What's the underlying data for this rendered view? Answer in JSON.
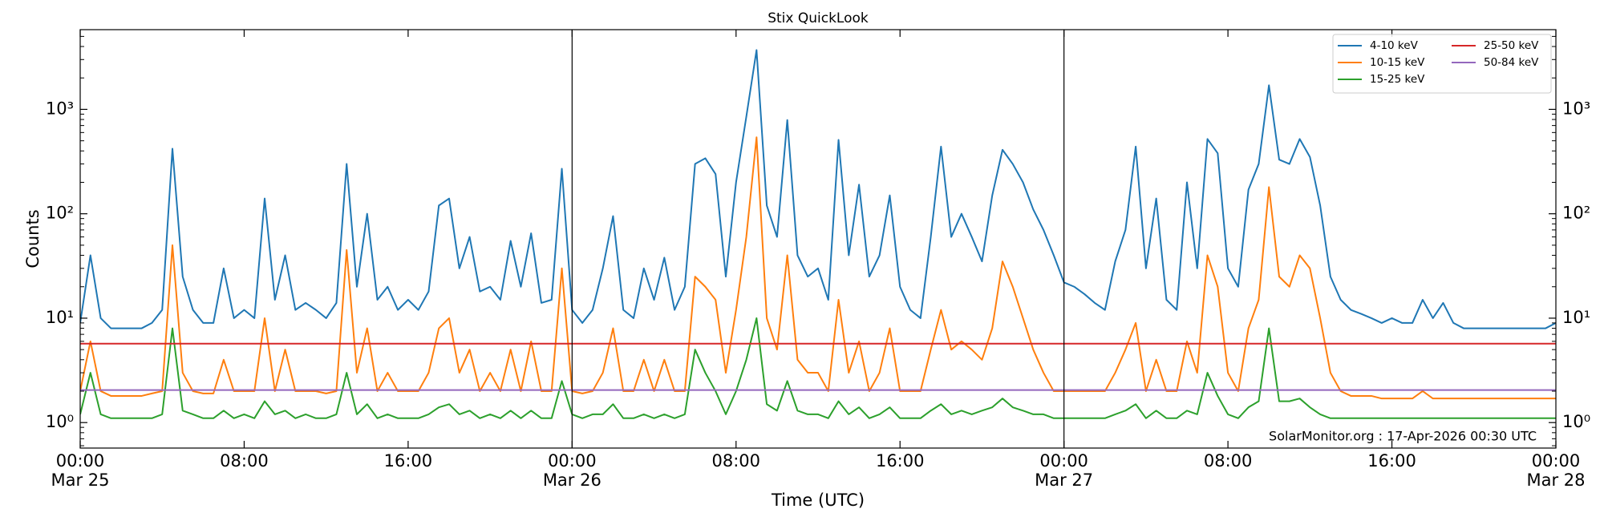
{
  "chart_data": {
    "type": "line",
    "title": "Stix QuickLook",
    "x_label": "Time (UTC)",
    "y_label": "Counts",
    "annotation": "SolarMonitor.org : 17-Apr-2026 00:30 UTC",
    "log_y": true,
    "legend": "upper right",
    "legend_columns": 2,
    "day_separators": true,
    "xlim": [
      "Mar 25 00:00",
      "Mar 28 00:00"
    ],
    "xticks": [
      {
        "value": "Mar 25 00:00",
        "label": [
          "00:00",
          "Mar 25"
        ]
      },
      {
        "value": "Mar 25 08:00",
        "label": [
          "08:00"
        ]
      },
      {
        "value": "Mar 25 16:00",
        "label": [
          "16:00"
        ]
      },
      {
        "value": "Mar 26 00:00",
        "label": [
          "00:00",
          "Mar 26"
        ]
      },
      {
        "value": "Mar 26 08:00",
        "label": [
          "08:00"
        ]
      },
      {
        "value": "Mar 26 16:00",
        "label": [
          "16:00"
        ]
      },
      {
        "value": "Mar 27 00:00",
        "label": [
          "00:00",
          "Mar 27"
        ]
      },
      {
        "value": "Mar 27 08:00",
        "label": [
          "08:00"
        ]
      },
      {
        "value": "Mar 27 16:00",
        "label": [
          "16:00"
        ]
      },
      {
        "value": "Mar 28 00:00",
        "label": [
          "00:00",
          "Mar 28"
        ]
      }
    ],
    "ylim": [
      0.57,
      5800
    ],
    "yticks": [
      {
        "value": 1,
        "label": "10⁰"
      },
      {
        "value": 10,
        "label": "10¹"
      },
      {
        "value": 100,
        "label": "10²"
      },
      {
        "value": 1000,
        "label": "10³"
      }
    ],
    "x": [
      "Mar 25 00:00",
      "Mar 25 00:30",
      "Mar 25 01:00",
      "Mar 25 01:30",
      "Mar 25 02:00",
      "Mar 25 02:30",
      "Mar 25 03:00",
      "Mar 25 03:30",
      "Mar 25 04:00",
      "Mar 25 04:30",
      "Mar 25 05:00",
      "Mar 25 05:30",
      "Mar 25 06:00",
      "Mar 25 06:30",
      "Mar 25 07:00",
      "Mar 25 07:30",
      "Mar 25 08:00",
      "Mar 25 08:30",
      "Mar 25 09:00",
      "Mar 25 09:30",
      "Mar 25 10:00",
      "Mar 25 10:30",
      "Mar 25 11:00",
      "Mar 25 11:30",
      "Mar 25 12:00",
      "Mar 25 12:30",
      "Mar 25 13:00",
      "Mar 25 13:30",
      "Mar 25 14:00",
      "Mar 25 14:30",
      "Mar 25 15:00",
      "Mar 25 15:30",
      "Mar 25 16:00",
      "Mar 25 16:30",
      "Mar 25 17:00",
      "Mar 25 17:30",
      "Mar 25 18:00",
      "Mar 25 18:30",
      "Mar 25 19:00",
      "Mar 25 19:30",
      "Mar 25 20:00",
      "Mar 25 20:30",
      "Mar 25 21:00",
      "Mar 25 21:30",
      "Mar 25 22:00",
      "Mar 25 22:30",
      "Mar 25 23:00",
      "Mar 25 23:30",
      "Mar 26 00:00",
      "Mar 26 00:30",
      "Mar 26 01:00",
      "Mar 26 01:30",
      "Mar 26 02:00",
      "Mar 26 02:30",
      "Mar 26 03:00",
      "Mar 26 03:30",
      "Mar 26 04:00",
      "Mar 26 04:30",
      "Mar 26 05:00",
      "Mar 26 05:30",
      "Mar 26 06:00",
      "Mar 26 06:30",
      "Mar 26 07:00",
      "Mar 26 07:30",
      "Mar 26 08:00",
      "Mar 26 08:30",
      "Mar 26 09:00",
      "Mar 26 09:30",
      "Mar 26 10:00",
      "Mar 26 10:30",
      "Mar 26 11:00",
      "Mar 26 11:30",
      "Mar 26 12:00",
      "Mar 26 12:30",
      "Mar 26 13:00",
      "Mar 26 13:30",
      "Mar 26 14:00",
      "Mar 26 14:30",
      "Mar 26 15:00",
      "Mar 26 15:30",
      "Mar 26 16:00",
      "Mar 26 16:30",
      "Mar 26 17:00",
      "Mar 26 17:30",
      "Mar 26 18:00",
      "Mar 26 18:30",
      "Mar 26 19:00",
      "Mar 26 19:30",
      "Mar 26 20:00",
      "Mar 26 20:30",
      "Mar 26 21:00",
      "Mar 26 21:30",
      "Mar 26 22:00",
      "Mar 26 22:30",
      "Mar 26 23:00",
      "Mar 26 23:30",
      "Mar 27 00:00",
      "Mar 27 00:30",
      "Mar 27 01:00",
      "Mar 27 01:30",
      "Mar 27 02:00",
      "Mar 27 02:30",
      "Mar 27 03:00",
      "Mar 27 03:30",
      "Mar 27 04:00",
      "Mar 27 04:30",
      "Mar 27 05:00",
      "Mar 27 05:30",
      "Mar 27 06:00",
      "Mar 27 06:30",
      "Mar 27 07:00",
      "Mar 27 07:30",
      "Mar 27 08:00",
      "Mar 27 08:30",
      "Mar 27 09:00",
      "Mar 27 09:30",
      "Mar 27 10:00",
      "Mar 27 10:30",
      "Mar 27 11:00",
      "Mar 27 11:30",
      "Mar 27 12:00",
      "Mar 27 12:30",
      "Mar 27 13:00",
      "Mar 27 13:30",
      "Mar 27 14:00",
      "Mar 27 14:30",
      "Mar 27 15:00",
      "Mar 27 15:30",
      "Mar 27 16:00",
      "Mar 27 16:30",
      "Mar 27 17:00",
      "Mar 27 17:30",
      "Mar 27 18:00",
      "Mar 27 18:30",
      "Mar 27 19:00",
      "Mar 27 19:30",
      "Mar 27 20:00",
      "Mar 27 20:30",
      "Mar 27 21:00",
      "Mar 27 21:30",
      "Mar 27 22:00",
      "Mar 27 22:30",
      "Mar 27 23:00",
      "Mar 27 23:30",
      "Mar 28 00:00"
    ],
    "series": [
      {
        "name": "4-10 keV",
        "color": "#1f77b4",
        "values": [
          9,
          40,
          10,
          8,
          8,
          8,
          8,
          9,
          12,
          420,
          25,
          12,
          9,
          9,
          30,
          10,
          12,
          10,
          140,
          15,
          40,
          12,
          14,
          12,
          10,
          14,
          300,
          20,
          100,
          15,
          20,
          12,
          15,
          12,
          18,
          120,
          140,
          30,
          60,
          18,
          20,
          15,
          55,
          20,
          65,
          14,
          15,
          270,
          12,
          9,
          12,
          30,
          95,
          12,
          10,
          30,
          15,
          38,
          12,
          20,
          300,
          340,
          240,
          25,
          200,
          850,
          3700,
          120,
          60,
          790,
          40,
          25,
          30,
          15,
          510,
          40,
          190,
          25,
          40,
          150,
          20,
          12,
          10,
          60,
          440,
          60,
          100,
          60,
          35,
          150,
          410,
          300,
          200,
          110,
          70,
          40,
          22,
          20,
          17,
          14,
          12,
          35,
          70,
          440,
          30,
          140,
          15,
          12,
          200,
          30,
          520,
          380,
          30,
          20,
          170,
          300,
          1700,
          330,
          300,
          520,
          350,
          120,
          25,
          15,
          12,
          11,
          10,
          9,
          10,
          9,
          9,
          15,
          10,
          14,
          9,
          8,
          8,
          8,
          8,
          8,
          8,
          8,
          8,
          8,
          9
        ]
      },
      {
        "name": "10-15 keV",
        "color": "#ff7f0e",
        "values": [
          2,
          6,
          2,
          1.8,
          1.8,
          1.8,
          1.8,
          1.9,
          2,
          50,
          3,
          2,
          1.9,
          1.9,
          4,
          2,
          2,
          2,
          10,
          2,
          5,
          2,
          2,
          2,
          1.9,
          2,
          45,
          3,
          8,
          2,
          3,
          2,
          2,
          2,
          3,
          8,
          10,
          3,
          5,
          2,
          3,
          2,
          5,
          2,
          6,
          2,
          2,
          30,
          2,
          1.9,
          2,
          3,
          8,
          2,
          2,
          4,
          2,
          4,
          2,
          2,
          25,
          20,
          15,
          3,
          12,
          60,
          540,
          10,
          5,
          40,
          4,
          3,
          3,
          2,
          15,
          3,
          6,
          2,
          3,
          8,
          2,
          2,
          2,
          5,
          12,
          5,
          6,
          5,
          4,
          8,
          35,
          20,
          10,
          5,
          3,
          2,
          2,
          2,
          2,
          2,
          2,
          3,
          5,
          9,
          2,
          4,
          2,
          2,
          6,
          3,
          40,
          20,
          3,
          2,
          8,
          15,
          180,
          25,
          20,
          40,
          30,
          10,
          3,
          2,
          1.8,
          1.8,
          1.8,
          1.7,
          1.7,
          1.7,
          1.7,
          2,
          1.7,
          1.7,
          1.7,
          1.7,
          1.7,
          1.7,
          1.7,
          1.7,
          1.7,
          1.7,
          1.7,
          1.7,
          1.7
        ]
      },
      {
        "name": "15-25 keV",
        "color": "#2ca02c",
        "values": [
          1.2,
          3,
          1.2,
          1.1,
          1.1,
          1.1,
          1.1,
          1.1,
          1.2,
          8,
          1.3,
          1.2,
          1.1,
          1.1,
          1.3,
          1.1,
          1.2,
          1.1,
          1.6,
          1.2,
          1.3,
          1.1,
          1.2,
          1.1,
          1.1,
          1.2,
          3,
          1.2,
          1.5,
          1.1,
          1.2,
          1.1,
          1.1,
          1.1,
          1.2,
          1.4,
          1.5,
          1.2,
          1.3,
          1.1,
          1.2,
          1.1,
          1.3,
          1.1,
          1.3,
          1.1,
          1.1,
          2.5,
          1.2,
          1.1,
          1.2,
          1.2,
          1.5,
          1.1,
          1.1,
          1.2,
          1.1,
          1.2,
          1.1,
          1.2,
          5,
          3,
          2,
          1.2,
          2,
          4,
          10,
          1.5,
          1.3,
          2.5,
          1.3,
          1.2,
          1.2,
          1.1,
          1.6,
          1.2,
          1.4,
          1.1,
          1.2,
          1.4,
          1.1,
          1.1,
          1.1,
          1.3,
          1.5,
          1.2,
          1.3,
          1.2,
          1.3,
          1.4,
          1.7,
          1.4,
          1.3,
          1.2,
          1.2,
          1.1,
          1.1,
          1.1,
          1.1,
          1.1,
          1.1,
          1.2,
          1.3,
          1.5,
          1.1,
          1.3,
          1.1,
          1.1,
          1.3,
          1.2,
          3,
          1.8,
          1.2,
          1.1,
          1.4,
          1.6,
          8,
          1.6,
          1.6,
          1.7,
          1.4,
          1.2,
          1.1,
          1.1,
          1.1,
          1.1,
          1.1,
          1.1,
          1.1,
          1.1,
          1.1,
          1.1,
          1.1,
          1.1,
          1.1,
          1.1,
          1.1,
          1.1,
          1.1,
          1.1,
          1.1,
          1.1,
          1.1,
          1.1,
          1.1
        ]
      },
      {
        "name": "25-50 keV",
        "color": "#d62728",
        "values": [
          5.7,
          5.7,
          5.7,
          5.7,
          5.7,
          5.7,
          5.7,
          5.7,
          5.7,
          5.7,
          5.7,
          5.7,
          5.7,
          5.7,
          5.7,
          5.7,
          5.7,
          5.7,
          5.7,
          5.7,
          5.7,
          5.7,
          5.7,
          5.7,
          5.7,
          5.7,
          5.7,
          5.7,
          5.7,
          5.7,
          5.7,
          5.7,
          5.7,
          5.7,
          5.7,
          5.7,
          5.7,
          5.7,
          5.7,
          5.7,
          5.7,
          5.7,
          5.7,
          5.7,
          5.7,
          5.7,
          5.7,
          5.7,
          5.7,
          5.7,
          5.7,
          5.7,
          5.7,
          5.7,
          5.7,
          5.7,
          5.7,
          5.7,
          5.7,
          5.7,
          5.7,
          5.7,
          5.7,
          5.7,
          5.7,
          5.7,
          5.7,
          5.7,
          5.7,
          5.7,
          5.7,
          5.7,
          5.7,
          5.7,
          5.7,
          5.7,
          5.7,
          5.7,
          5.7,
          5.7,
          5.7,
          5.7,
          5.7,
          5.7,
          5.7,
          5.7,
          5.7,
          5.7,
          5.7,
          5.7,
          5.7,
          5.7,
          5.7,
          5.7,
          5.7,
          5.7,
          5.7,
          5.7,
          5.7,
          5.7,
          5.7,
          5.7,
          5.7,
          5.7,
          5.7,
          5.7,
          5.7,
          5.7,
          5.7,
          5.7,
          5.7,
          5.7,
          5.7,
          5.7,
          5.7,
          5.7,
          5.7,
          5.7,
          5.7,
          5.7,
          5.7,
          5.7,
          5.7,
          5.7,
          5.7,
          5.7,
          5.7,
          5.7,
          5.7,
          5.7,
          5.7,
          5.7,
          5.7,
          5.7,
          5.7,
          5.7,
          5.7,
          5.7,
          5.7,
          5.7,
          5.7,
          5.7,
          5.7,
          5.7,
          5.7
        ]
      },
      {
        "name": "50-84 keV",
        "color": "#9467bd",
        "values": [
          2.05,
          2.05,
          2.05,
          2.05,
          2.05,
          2.05,
          2.05,
          2.05,
          2.05,
          2.05,
          2.05,
          2.05,
          2.05,
          2.05,
          2.05,
          2.05,
          2.05,
          2.05,
          2.05,
          2.05,
          2.05,
          2.05,
          2.05,
          2.05,
          2.05,
          2.05,
          2.05,
          2.05,
          2.05,
          2.05,
          2.05,
          2.05,
          2.05,
          2.05,
          2.05,
          2.05,
          2.05,
          2.05,
          2.05,
          2.05,
          2.05,
          2.05,
          2.05,
          2.05,
          2.05,
          2.05,
          2.05,
          2.05,
          2.05,
          2.05,
          2.05,
          2.05,
          2.05,
          2.05,
          2.05,
          2.05,
          2.05,
          2.05,
          2.05,
          2.05,
          2.05,
          2.05,
          2.05,
          2.05,
          2.05,
          2.05,
          2.05,
          2.05,
          2.05,
          2.05,
          2.05,
          2.05,
          2.05,
          2.05,
          2.05,
          2.05,
          2.05,
          2.05,
          2.05,
          2.05,
          2.05,
          2.05,
          2.05,
          2.05,
          2.05,
          2.05,
          2.05,
          2.05,
          2.05,
          2.05,
          2.05,
          2.05,
          2.05,
          2.05,
          2.05,
          2.05,
          2.05,
          2.05,
          2.05,
          2.05,
          2.05,
          2.05,
          2.05,
          2.05,
          2.05,
          2.05,
          2.05,
          2.05,
          2.05,
          2.05,
          2.05,
          2.05,
          2.05,
          2.05,
          2.05,
          2.05,
          2.05,
          2.05,
          2.05,
          2.05,
          2.05,
          2.05,
          2.05,
          2.05,
          2.05,
          2.05,
          2.05,
          2.05,
          2.05,
          2.05,
          2.05,
          2.05,
          2.05,
          2.05,
          2.05,
          2.05,
          2.05,
          2.05,
          2.05,
          2.05,
          2.05,
          2.05,
          2.05,
          2.05,
          2.05
        ]
      }
    ]
  }
}
